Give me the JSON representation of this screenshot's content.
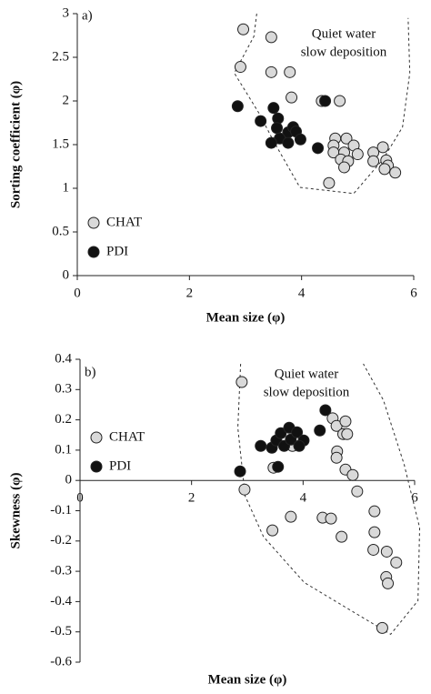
{
  "chart_data": [
    {
      "type": "scatter",
      "panel": "a)",
      "annotation": [
        "Quiet water",
        "slow deposition"
      ],
      "x_label": "Mean size (φ)",
      "y_label": "Sorting coefficient (φ)",
      "xlim": [
        0,
        6
      ],
      "xticks": [
        0,
        2,
        4,
        6
      ],
      "ylim": [
        0,
        3
      ],
      "yticks": [
        0,
        0.5,
        1,
        1.5,
        2,
        2.5,
        3
      ],
      "legend": "lower left",
      "region": {
        "x": [
          3.2,
          3.15,
          2.8,
          3.25,
          3.5,
          3.97,
          4.93,
          5.45,
          5.8,
          5.93,
          5.9
        ],
        "y": [
          3.0,
          2.74,
          2.32,
          1.85,
          1.54,
          1.01,
          0.94,
          1.33,
          1.7,
          2.32,
          2.95
        ]
      },
      "series": [
        {
          "name": "CHAT",
          "color": "#d9d9d9",
          "x": [
            2.96,
            3.46,
            2.91,
            3.46,
            3.79,
            3.82,
            4.36,
            4.68,
            4.6,
            4.8,
            4.57,
            4.93,
            4.57,
            4.76,
            5.0,
            4.7,
            4.83,
            4.76,
            5.28,
            5.45,
            5.28,
            5.51,
            5.54,
            5.48,
            5.67,
            4.49
          ],
          "y": [
            2.82,
            2.73,
            2.39,
            2.33,
            2.33,
            2.04,
            2.0,
            2.0,
            1.57,
            1.57,
            1.49,
            1.49,
            1.41,
            1.41,
            1.39,
            1.33,
            1.31,
            1.24,
            1.41,
            1.47,
            1.31,
            1.32,
            1.26,
            1.22,
            1.18,
            1.06
          ]
        },
        {
          "name": "PDI",
          "color": "#111111",
          "x": [
            2.86,
            3.27,
            3.5,
            3.58,
            3.56,
            3.76,
            3.85,
            3.9,
            3.61,
            3.46,
            3.76,
            3.98,
            4.29,
            4.42
          ],
          "y": [
            1.94,
            1.77,
            1.92,
            1.8,
            1.69,
            1.64,
            1.7,
            1.65,
            1.57,
            1.52,
            1.52,
            1.56,
            1.46,
            2.0
          ]
        }
      ]
    },
    {
      "type": "scatter",
      "panel": "b)",
      "annotation": [
        "Quiet water",
        "slow deposition"
      ],
      "x_label": "Mean size (φ)",
      "y_label": "Skewness (φ)",
      "xlim": [
        0,
        6
      ],
      "xticks": [
        0,
        2,
        4,
        6
      ],
      "ylim": [
        -0.6,
        0.4
      ],
      "yticks": [
        0.4,
        0.3,
        0.2,
        0.1,
        0,
        -0.1,
        -0.2,
        -0.3,
        -0.4,
        -0.5,
        -0.6
      ],
      "legend": "upper left",
      "region": {
        "x": [
          2.88,
          2.83,
          2.96,
          3.29,
          4.02,
          5.57,
          6.06,
          6.09,
          5.81,
          5.44,
          5.08
        ],
        "y": [
          0.385,
          0.174,
          -0.051,
          -0.186,
          -0.337,
          -0.508,
          -0.397,
          -0.156,
          0.054,
          0.265,
          0.385
        ]
      },
      "series": [
        {
          "name": "CHAT",
          "color": "#d9d9d9",
          "x": [
            2.9,
            2.95,
            3.45,
            3.47,
            3.78,
            3.81,
            4.35,
            4.5,
            4.69,
            4.53,
            4.6,
            4.76,
            4.72,
            4.79,
            4.61,
            4.6,
            4.76,
            4.89,
            4.97,
            5.28,
            5.28,
            5.26,
            5.5,
            5.67,
            5.49,
            5.52,
            5.42
          ],
          "y": [
            0.325,
            -0.03,
            -0.165,
            0.042,
            -0.12,
            0.114,
            -0.123,
            -0.126,
            -0.186,
            0.205,
            0.18,
            0.195,
            0.153,
            0.153,
            0.096,
            0.075,
            0.036,
            0.018,
            -0.036,
            -0.102,
            -0.171,
            -0.229,
            -0.235,
            -0.271,
            -0.319,
            -0.34,
            -0.487
          ]
        },
        {
          "name": "PDI",
          "color": "#111111",
          "x": [
            2.87,
            3.24,
            3.44,
            3.52,
            3.6,
            3.66,
            3.78,
            3.75,
            3.89,
            4.01,
            3.93,
            4.3,
            4.4,
            3.55
          ],
          "y": [
            0.03,
            0.114,
            0.108,
            0.132,
            0.156,
            0.114,
            0.135,
            0.174,
            0.159,
            0.132,
            0.114,
            0.165,
            0.232,
            0.045
          ]
        }
      ]
    }
  ]
}
